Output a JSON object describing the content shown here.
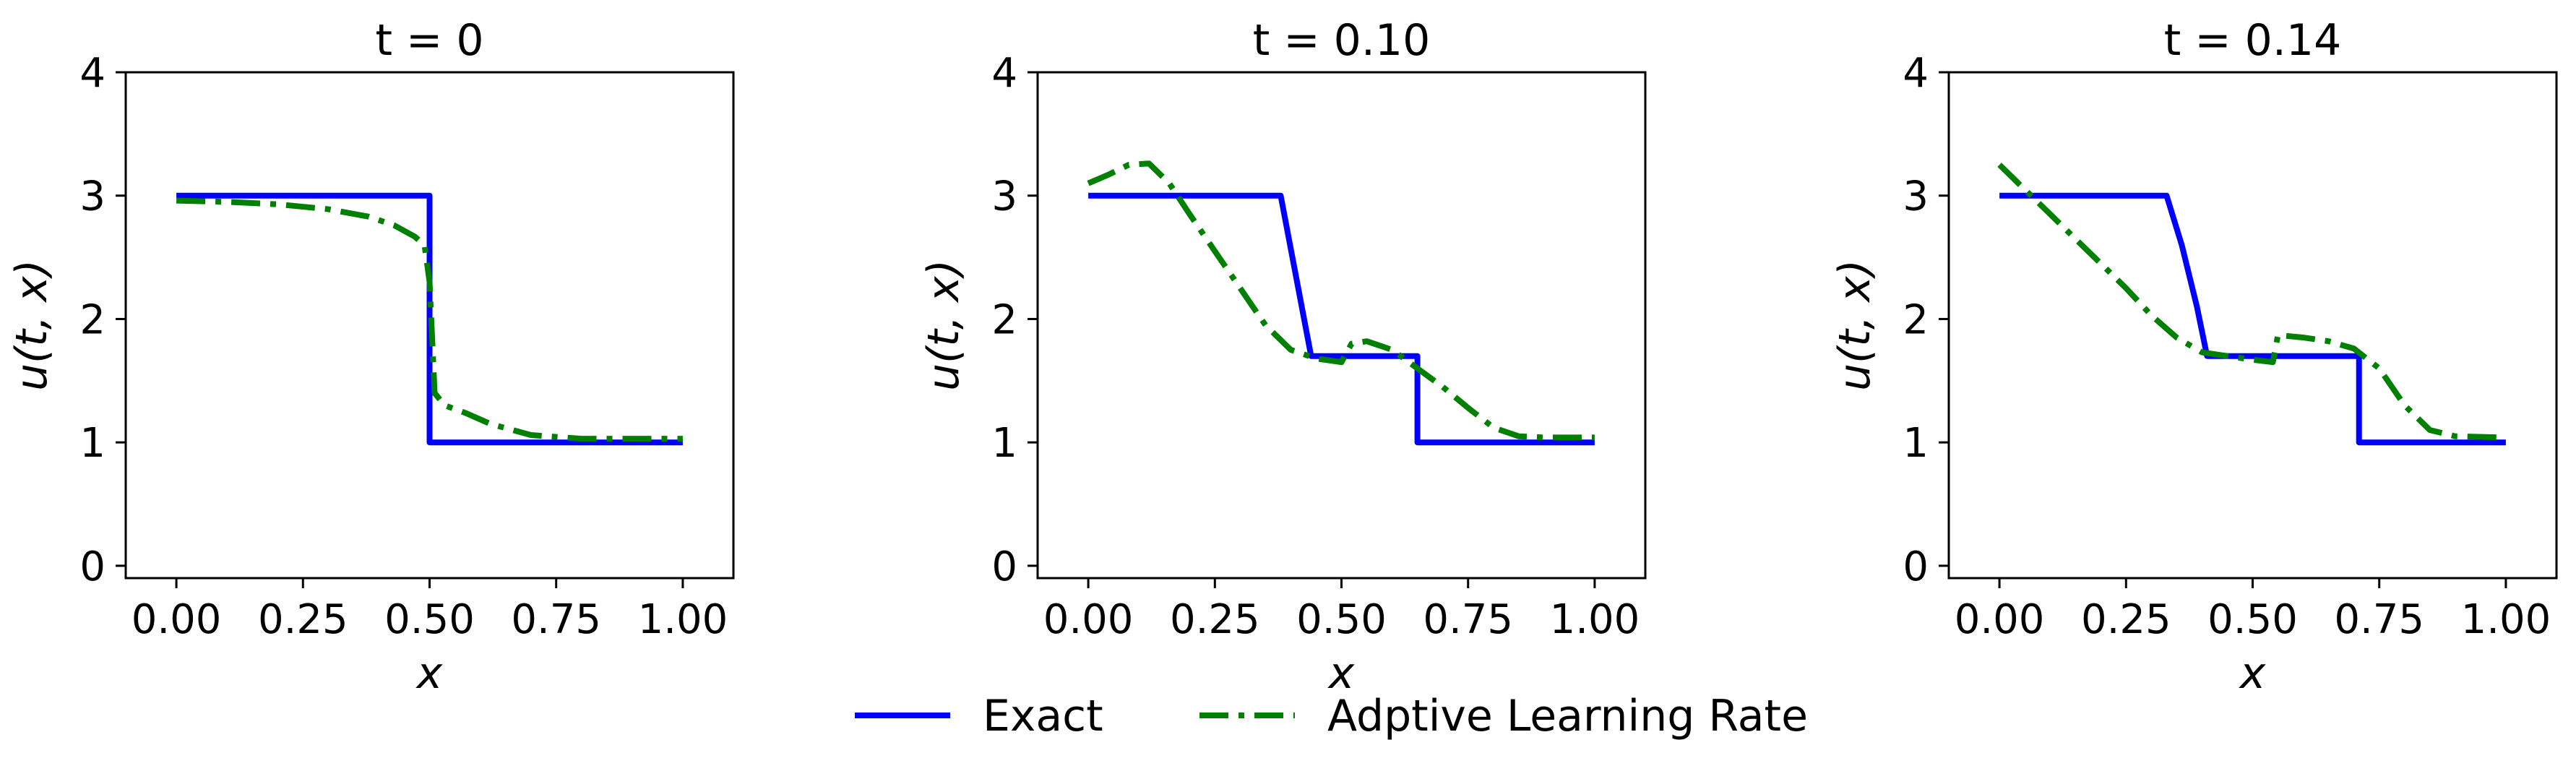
{
  "chart_data": [
    {
      "type": "line",
      "title": "t = 0",
      "xlabel": "x",
      "ylabel": "u(t, x)",
      "xlim": [
        -0.1,
        1.1
      ],
      "ylim": [
        -0.1,
        4.0
      ],
      "xticks": [
        0.0,
        0.25,
        0.5,
        0.75,
        1.0
      ],
      "xtick_labels": [
        "0.00",
        "0.25",
        "0.50",
        "0.75",
        "1.00"
      ],
      "yticks": [
        0,
        1,
        2,
        3,
        4
      ],
      "ytick_labels": [
        "0",
        "1",
        "2",
        "3",
        "4"
      ],
      "grid": false,
      "series": [
        {
          "name": "Exact",
          "color": "#0000ff",
          "style": "solid",
          "x": [
            0.0,
            0.5,
            0.5,
            1.0
          ],
          "y": [
            3.0,
            3.0,
            1.0,
            1.0
          ]
        },
        {
          "name": "Adptive Learning Rate",
          "color": "#008000",
          "style": "dashdot",
          "x": [
            0.0,
            0.1,
            0.2,
            0.3,
            0.38,
            0.43,
            0.47,
            0.49,
            0.5,
            0.51,
            0.53,
            0.57,
            0.62,
            0.7,
            0.8,
            0.9,
            1.0
          ],
          "y": [
            2.96,
            2.95,
            2.93,
            2.89,
            2.83,
            2.76,
            2.67,
            2.6,
            2.3,
            1.4,
            1.3,
            1.24,
            1.15,
            1.06,
            1.03,
            1.03,
            1.03
          ]
        }
      ]
    },
    {
      "type": "line",
      "title": "t = 0.10",
      "xlabel": "x",
      "ylabel": "u(t, x)",
      "xlim": [
        -0.1,
        1.1
      ],
      "ylim": [
        -0.1,
        4.0
      ],
      "xticks": [
        0.0,
        0.25,
        0.5,
        0.75,
        1.0
      ],
      "xtick_labels": [
        "0.00",
        "0.25",
        "0.50",
        "0.75",
        "1.00"
      ],
      "yticks": [
        0,
        1,
        2,
        3,
        4
      ],
      "ytick_labels": [
        "0",
        "1",
        "2",
        "3",
        "4"
      ],
      "grid": false,
      "series": [
        {
          "name": "Exact",
          "color": "#0000ff",
          "style": "solid",
          "x": [
            0.0,
            0.38,
            0.44,
            0.65,
            0.65,
            1.0
          ],
          "y": [
            3.0,
            3.0,
            1.7,
            1.7,
            1.0,
            1.0
          ]
        },
        {
          "name": "Adptive Learning Rate",
          "color": "#008000",
          "style": "dashdot",
          "x": [
            0.0,
            0.04,
            0.08,
            0.12,
            0.16,
            0.2,
            0.25,
            0.3,
            0.35,
            0.4,
            0.45,
            0.5,
            0.52,
            0.55,
            0.6,
            0.65,
            0.7,
            0.75,
            0.8,
            0.85,
            0.9,
            1.0
          ],
          "y": [
            3.1,
            3.17,
            3.25,
            3.26,
            3.1,
            2.85,
            2.55,
            2.25,
            1.95,
            1.75,
            1.68,
            1.65,
            1.8,
            1.82,
            1.75,
            1.6,
            1.45,
            1.28,
            1.12,
            1.05,
            1.04,
            1.04
          ]
        }
      ]
    },
    {
      "type": "line",
      "title": "t = 0.14",
      "xlabel": "x",
      "ylabel": "u(t, x)",
      "xlim": [
        -0.1,
        1.1
      ],
      "ylim": [
        -0.1,
        4.0
      ],
      "xticks": [
        0.0,
        0.25,
        0.5,
        0.75,
        1.0
      ],
      "xtick_labels": [
        "0.00",
        "0.25",
        "0.50",
        "0.75",
        "1.00"
      ],
      "yticks": [
        0,
        1,
        2,
        3,
        4
      ],
      "ytick_labels": [
        "0",
        "1",
        "2",
        "3",
        "4"
      ],
      "grid": false,
      "series": [
        {
          "name": "Exact",
          "color": "#0000ff",
          "style": "solid",
          "x": [
            0.0,
            0.33,
            0.36,
            0.39,
            0.41,
            0.71,
            0.71,
            1.0
          ],
          "y": [
            3.0,
            3.0,
            2.6,
            2.1,
            1.7,
            1.7,
            1.0,
            1.0
          ]
        },
        {
          "name": "Adptive Learning Rate",
          "color": "#008000",
          "style": "dashdot",
          "x": [
            0.0,
            0.05,
            0.1,
            0.15,
            0.2,
            0.25,
            0.3,
            0.35,
            0.4,
            0.45,
            0.5,
            0.54,
            0.55,
            0.6,
            0.65,
            0.7,
            0.75,
            0.8,
            0.85,
            0.9,
            1.0
          ],
          "y": [
            3.25,
            3.05,
            2.85,
            2.65,
            2.45,
            2.25,
            2.03,
            1.85,
            1.73,
            1.7,
            1.67,
            1.65,
            1.87,
            1.85,
            1.82,
            1.76,
            1.6,
            1.3,
            1.1,
            1.05,
            1.04
          ]
        }
      ]
    }
  ],
  "legend": {
    "placement": "bottom-center",
    "entries": [
      {
        "label": "Exact",
        "color": "#0000ff",
        "style": "solid"
      },
      {
        "label": "Adptive Learning Rate",
        "color": "#008000",
        "style": "dashdot"
      }
    ]
  }
}
